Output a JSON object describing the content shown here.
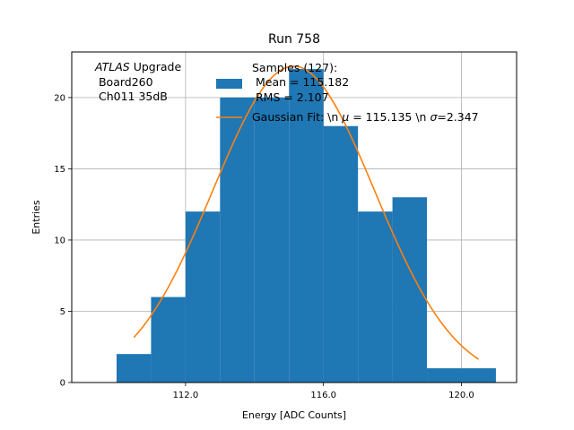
{
  "chart_data": {
    "type": "bar",
    "title": "Run 758",
    "xlabel": "Energy [ADC Counts]",
    "ylabel": "Entries",
    "xlim": [
      108.7,
      121.6
    ],
    "ylim": [
      0,
      23.2
    ],
    "x_ticks": [
      112.0,
      116.0,
      120.0
    ],
    "x_tick_labels": [
      "112.0",
      "116.0",
      "120.0"
    ],
    "y_ticks": [
      0,
      5,
      10,
      15,
      20
    ],
    "y_tick_labels": [
      "0",
      "5",
      "10",
      "15",
      "20"
    ],
    "grid": true,
    "bin_width": 1,
    "histogram": {
      "bin_edges": [
        110,
        111,
        112,
        113,
        114,
        115,
        116,
        117,
        118,
        119,
        120,
        121
      ],
      "counts": [
        2,
        6,
        12,
        20,
        20,
        22,
        18,
        12,
        13,
        1,
        1
      ],
      "color": "#1f77b4"
    },
    "fit": {
      "model": "gaussian",
      "mu": 115.135,
      "sigma": 2.347,
      "amplitude": 22.2,
      "x_range": [
        110.5,
        120.5
      ],
      "color": "#ff7f0e"
    },
    "annotation": {
      "line1_italic": "ATLAS",
      "line1_rest": " Upgrade",
      "line2": " Board260",
      "line3": " Ch011 35dB"
    },
    "legend": {
      "placement": "top-center",
      "hist_label_line1": "Samples (127):",
      "hist_label_line2": " Mean = 115.182",
      "hist_label_line3": " RMS = 2.107",
      "fit_label_prefix": "Gaussian Fit: \\n ",
      "fit_mu_symbol": "μ",
      "fit_label_mid": " = 115.135 \\n ",
      "fit_sigma_symbol": "σ",
      "fit_label_suffix": "=2.347"
    }
  }
}
